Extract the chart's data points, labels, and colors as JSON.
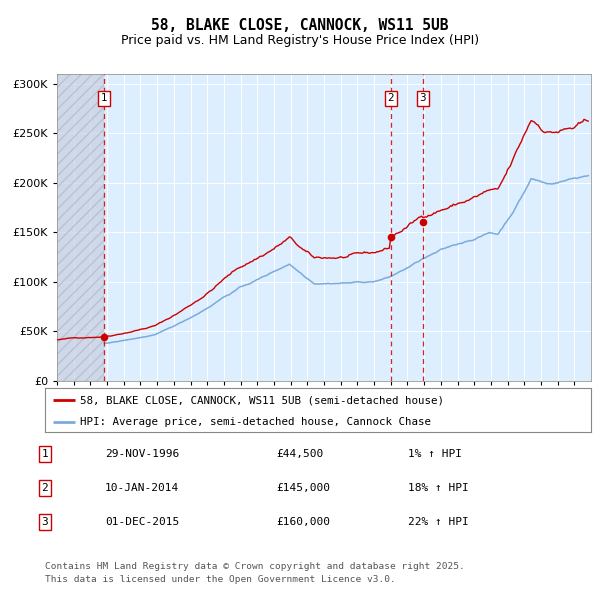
{
  "title_line1": "58, BLAKE CLOSE, CANNOCK, WS11 5UB",
  "title_line2": "Price paid vs. HM Land Registry's House Price Index (HPI)",
  "sales": [
    {
      "num": 1,
      "date_str": "29-NOV-1996",
      "price_str": "£44,500",
      "hpi_str": "1% ↑ HPI",
      "year": 1996,
      "month": 11,
      "price": 44500
    },
    {
      "num": 2,
      "date_str": "10-JAN-2014",
      "price_str": "£145,000",
      "hpi_str": "18% ↑ HPI",
      "year": 2014,
      "month": 1,
      "price": 145000
    },
    {
      "num": 3,
      "date_str": "01-DEC-2015",
      "price_str": "£160,000",
      "hpi_str": "22% ↑ HPI",
      "year": 2015,
      "month": 12,
      "price": 160000
    }
  ],
  "legend_line1": "58, BLAKE CLOSE, CANNOCK, WS11 5UB (semi-detached house)",
  "legend_line2": "HPI: Average price, semi-detached house, Cannock Chase",
  "footer_line1": "Contains HM Land Registry data © Crown copyright and database right 2025.",
  "footer_line2": "This data is licensed under the Open Government Licence v3.0.",
  "price_line_color": "#cc0000",
  "hpi_line_color": "#7aabdb",
  "vline_color": "#cc0000",
  "marker_box_color": "#cc0000",
  "bg_color": "#ddeeff",
  "ylim": [
    0,
    310000
  ],
  "yticks": [
    0,
    50000,
    100000,
    150000,
    200000,
    250000,
    300000
  ],
  "xlim_start": 1994.0,
  "xlim_end": 2026.0
}
